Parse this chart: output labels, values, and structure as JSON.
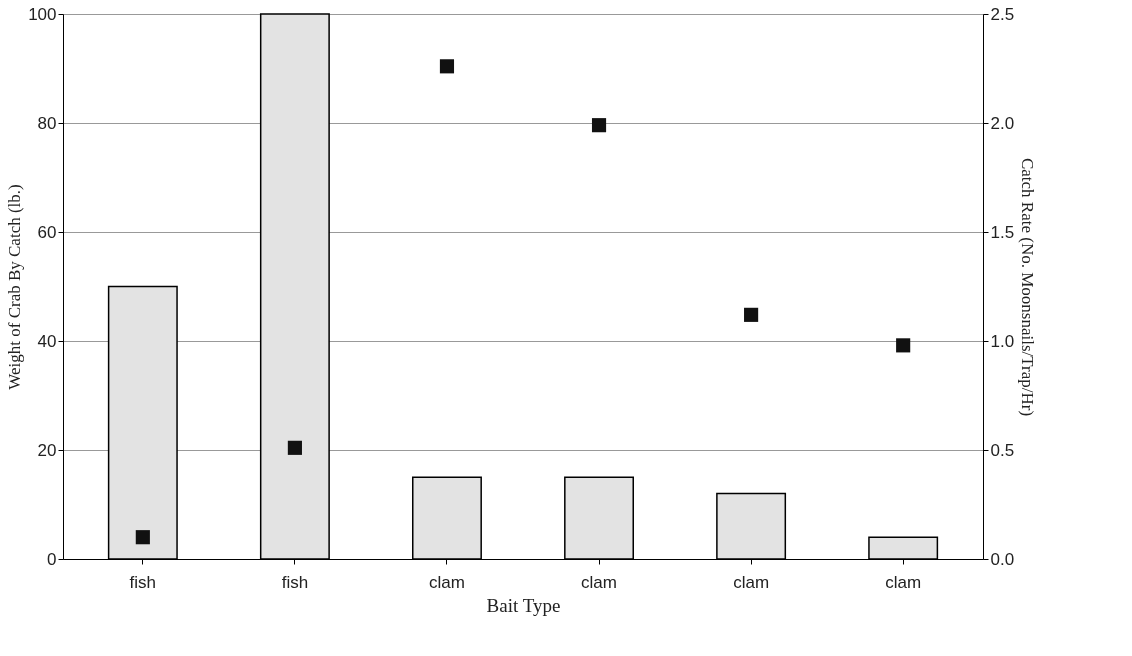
{
  "chart_data": {
    "type": "bar",
    "xlabel": "Bait Type",
    "ylabel": "Weight of Crab By Catch (lb.)",
    "y2label": "Catch Rate (No. Moonsnails/Trap/Hr)",
    "categories": [
      "fish",
      "fish",
      "clam",
      "clam",
      "clam",
      "clam"
    ],
    "series": [
      {
        "color": "#e3e3e3",
        "values": [
          50,
          100,
          15,
          15,
          12,
          4
        ]
      },
      {
        "type": "scatter",
        "axis": "y2",
        "marker": "square",
        "color": "#111111",
        "values": [
          0.1,
          0.51,
          2.26,
          1.99,
          1.12,
          0.98
        ]
      }
    ],
    "ylim": [
      0,
      100
    ],
    "yticks": [
      0,
      20,
      40,
      60,
      80,
      100
    ],
    "y2lim": [
      0,
      2.5
    ],
    "y2ticks": [
      {
        "value": 0,
        "label": "0.0"
      },
      {
        "value": 0.5,
        "label": "0.5"
      },
      {
        "value": 1,
        "label": "1.0"
      },
      {
        "value": 1.5,
        "label": "1.5"
      },
      {
        "value": 2,
        "label": "2.0"
      },
      {
        "value": 2.5,
        "label": "2.5"
      }
    ],
    "grid": "y"
  }
}
